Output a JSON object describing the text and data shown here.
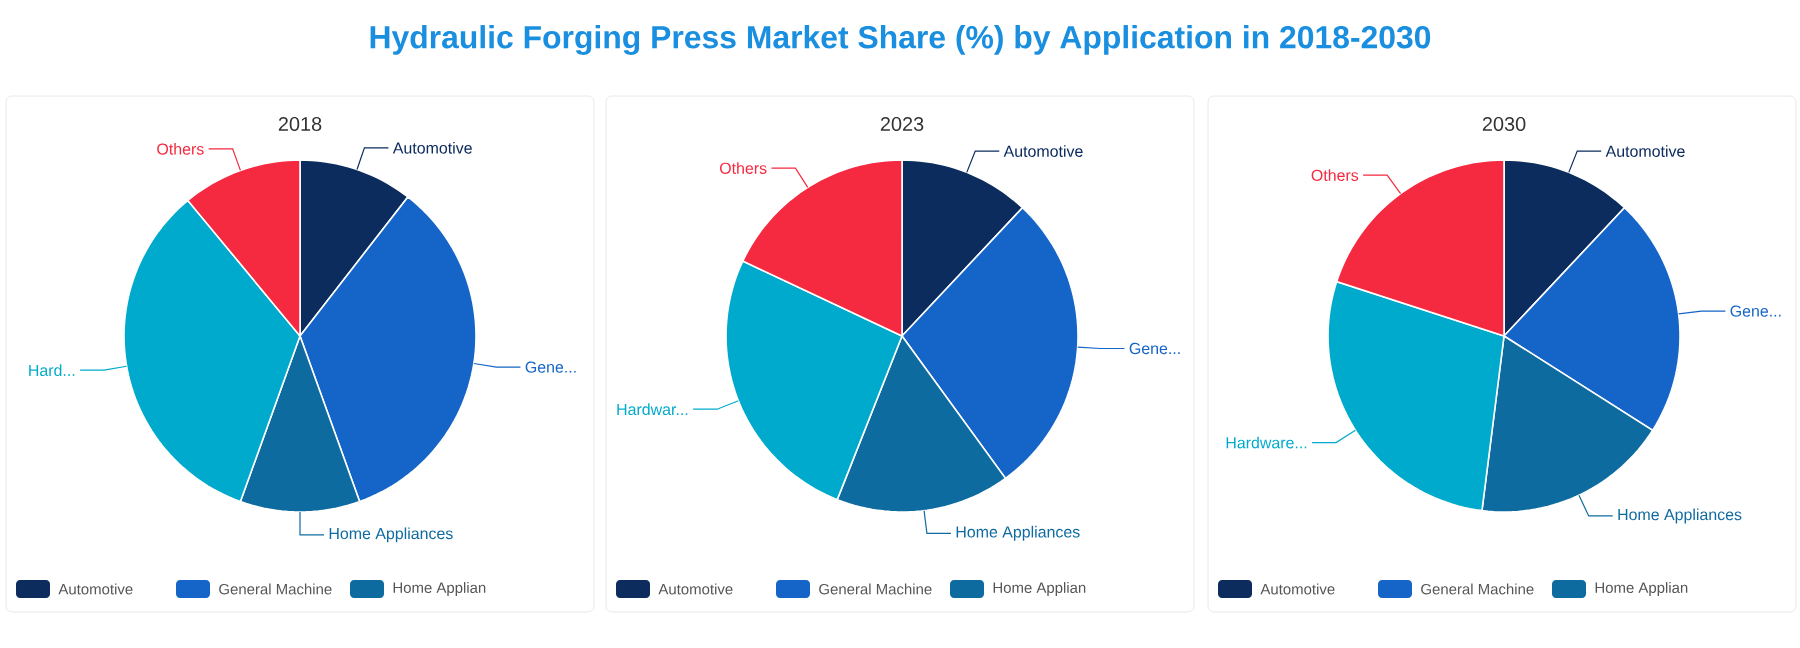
{
  "chart_data": [
    {
      "type": "pie",
      "title": "Hydraulic Forging Press Market Share (%) by Application in 2018-2030",
      "subtitle": "2018",
      "categories": [
        "Automotive",
        "Gene...",
        "Home Appliances",
        "Hard...",
        "Others"
      ],
      "values": [
        10.5,
        34,
        11,
        33.5,
        11
      ],
      "colors": [
        "#0d2c5e",
        "#1565c8",
        "#0e6ba0",
        "#00aacc",
        "#f5293f"
      ],
      "annotations": [
        "Automotive",
        "General Machine",
        "Home Applian"
      ]
    },
    {
      "type": "pie",
      "title": "2023",
      "categories": [
        "Automotive",
        "Gene...",
        "Home Appliances",
        "Hardwar...",
        "Others"
      ],
      "values": [
        12,
        28,
        16,
        26,
        18
      ],
      "colors": [
        "#0d2c5e",
        "#1565c8",
        "#0e6ba0",
        "#00aacc",
        "#f5293f"
      ],
      "annotations": [
        "Automotive",
        "General Machine",
        "Home Applian"
      ]
    },
    {
      "type": "pie",
      "title": "2030",
      "categories": [
        "Automotive",
        "Gene...",
        "Home Appliances",
        "Hardware...",
        "Others"
      ],
      "values": [
        12,
        22,
        18,
        28,
        20
      ],
      "colors": [
        "#0d2c5e",
        "#1565c8",
        "#0e6ba0",
        "#00aacc",
        "#f5293f"
      ],
      "annotations": [
        "Automotive",
        "General Machine",
        "Home Applian"
      ]
    }
  ]
}
